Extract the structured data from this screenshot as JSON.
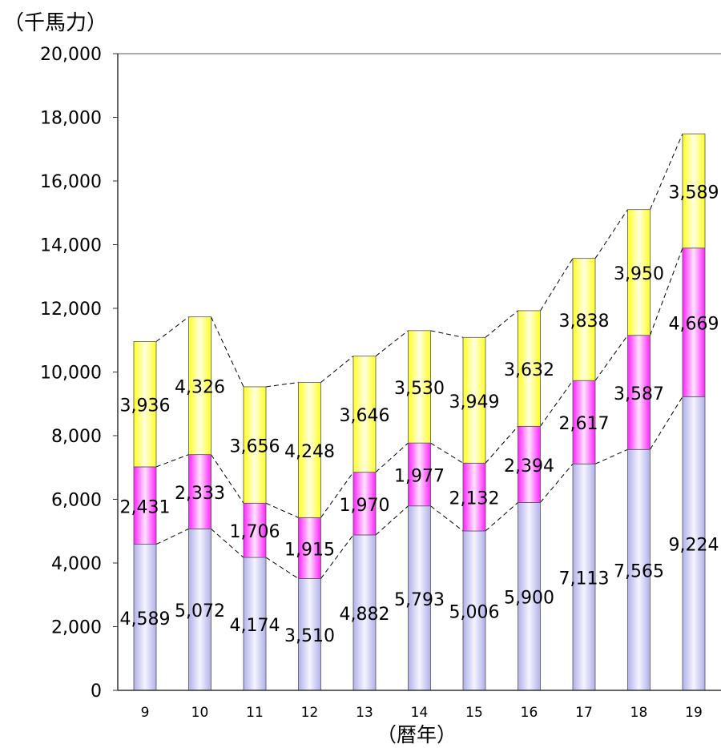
{
  "chart_data": {
    "type": "bar",
    "stacked": true,
    "ylabel": "（千馬力）",
    "xlabel": "（暦年）",
    "categories": [
      "9",
      "10",
      "11",
      "12",
      "13",
      "14",
      "15",
      "16",
      "17",
      "18",
      "19"
    ],
    "ylim": [
      0,
      20000
    ],
    "yticks": [
      "0",
      "2,000",
      "4,000",
      "6,000",
      "8,000",
      "10,000",
      "12,000",
      "14,000",
      "16,000",
      "18,000",
      "20,000"
    ],
    "grid": false,
    "legend": "none",
    "series_lines": "dashed",
    "series": [
      {
        "values": [
          4589,
          5072,
          4174,
          3510,
          4882,
          5793,
          5006,
          5900,
          7113,
          7565,
          9224
        ],
        "labels": [
          "4,589",
          "5,072",
          "4,174",
          "3,510",
          "4,882",
          "5,793",
          "5,006",
          "5,900",
          "7,113",
          "7,565",
          "9,224"
        ],
        "color": "#b3b3ee"
      },
      {
        "values": [
          2431,
          2333,
          1706,
          1915,
          1970,
          1977,
          2132,
          2394,
          2617,
          3587,
          4669
        ],
        "labels": [
          "2,431",
          "2,333",
          "1,706",
          "1,915",
          "1,970",
          "1,977",
          "2,132",
          "2,394",
          "2,617",
          "3,587",
          "4,669"
        ],
        "color": "#ff33ff"
      },
      {
        "values": [
          3936,
          4326,
          3656,
          4248,
          3646,
          3530,
          3949,
          3632,
          3838,
          3950,
          3589
        ],
        "labels": [
          "3,936",
          "4,326",
          "3,656",
          "4,248",
          "3,646",
          "3,530",
          "3,949",
          "3,632",
          "3,838",
          "3,950",
          "3,589"
        ],
        "color": "#ffff33"
      }
    ]
  }
}
